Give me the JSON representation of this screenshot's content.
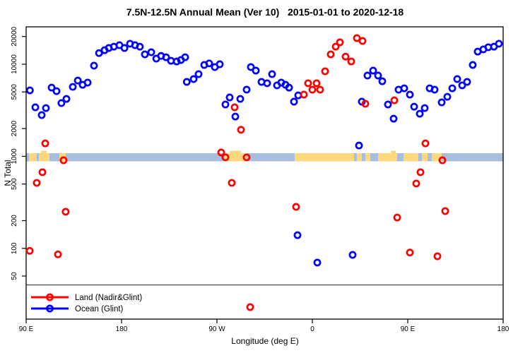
{
  "chart_data": {
    "type": "scatter",
    "title": "7.5N-12.5N Annual Mean (Ver 10)   2015-01-01 to 2020-12-18",
    "xlabel": "Longitude (deg E)",
    "ylabel": "N Total",
    "y_scale": "log10",
    "y_ticks": [
      50,
      100,
      200,
      500,
      1000,
      2000,
      5000,
      10000,
      20000
    ],
    "y_range": [
      17,
      25000
    ],
    "x_axis_unit": "degrees eastward along wrapped longitude axis (0=90E, 90=180, 180=90W, 270=0, 360=90E, 450=180)",
    "x_ticks_deg": [
      0,
      90,
      180,
      270,
      360,
      450
    ],
    "x_tick_labels": [
      "90 E",
      "180",
      "90 W",
      "0",
      "90 E",
      "180"
    ],
    "grid": false,
    "legend_position": "bottom-left",
    "series": [
      {
        "name": "Land (Nadir&Glint)",
        "color": "#ff0000",
        "marker": "open-circle",
        "points": [
          [
            3.3,
            94
          ],
          [
            10,
            514
          ],
          [
            15.3,
            671
          ],
          [
            18,
            1380
          ],
          [
            30,
            86
          ],
          [
            35.3,
            905
          ],
          [
            37.3,
            250
          ],
          [
            184,
            1100
          ],
          [
            188,
            973
          ],
          [
            194,
            514
          ],
          [
            196.7,
            3400
          ],
          [
            202.7,
            1940
          ],
          [
            208,
            973
          ],
          [
            211.3,
            23
          ],
          [
            254.7,
            282
          ],
          [
            262,
            4680
          ],
          [
            266,
            6210
          ],
          [
            270,
            5290
          ],
          [
            274,
            6210
          ],
          [
            277.3,
            5290
          ],
          [
            282,
            8380
          ],
          [
            287.3,
            12800
          ],
          [
            292,
            15500
          ],
          [
            296,
            17300
          ],
          [
            301.3,
            12100
          ],
          [
            306.7,
            10700
          ],
          [
            312,
            19200
          ],
          [
            317.3,
            17900
          ],
          [
            320,
            3720
          ],
          [
            347.3,
            4050
          ],
          [
            350,
            216
          ],
          [
            362,
            90
          ],
          [
            368,
            506
          ],
          [
            372,
            671
          ],
          [
            376.7,
            1380
          ],
          [
            388,
            82
          ],
          [
            392.7,
            905
          ],
          [
            395.3,
            254
          ]
        ]
      },
      {
        "name": "Ocean (Glint)",
        "color": "#0000ff",
        "marker": "open-circle",
        "points": [
          [
            3.5,
            5200
          ],
          [
            8.7,
            3400
          ],
          [
            14.7,
            2800
          ],
          [
            18.7,
            3340
          ],
          [
            24,
            5570
          ],
          [
            28.7,
            5100
          ],
          [
            33.3,
            3780
          ],
          [
            38,
            4200
          ],
          [
            44,
            5670
          ],
          [
            48.7,
            6650
          ],
          [
            53.3,
            5980
          ],
          [
            58,
            6310
          ],
          [
            64,
            9640
          ],
          [
            68.7,
            13200
          ],
          [
            74,
            14200
          ],
          [
            78,
            15000
          ],
          [
            82.7,
            15500
          ],
          [
            88,
            16100
          ],
          [
            92.7,
            15000
          ],
          [
            98,
            16700
          ],
          [
            102.7,
            16100
          ],
          [
            107.3,
            15500
          ],
          [
            112,
            12800
          ],
          [
            118,
            13500
          ],
          [
            122.7,
            11500
          ],
          [
            127.3,
            12300
          ],
          [
            132,
            11900
          ],
          [
            136.7,
            10900
          ],
          [
            142,
            10700
          ],
          [
            146,
            11100
          ],
          [
            150,
            11900
          ],
          [
            151.5,
            6430
          ],
          [
            158,
            6900
          ],
          [
            162.7,
            7800
          ],
          [
            168,
            9820
          ],
          [
            172.7,
            10200
          ],
          [
            178,
            9310
          ],
          [
            182.7,
            10000
          ],
          [
            188,
            3650
          ],
          [
            192,
            4360
          ],
          [
            197.3,
            2700
          ],
          [
            202,
            4200
          ],
          [
            208,
            5290
          ],
          [
            212,
            9310
          ],
          [
            216.7,
            8530
          ],
          [
            222,
            6430
          ],
          [
            227.3,
            6210
          ],
          [
            232,
            7800
          ],
          [
            236.7,
            5890
          ],
          [
            240.7,
            6310
          ],
          [
            244.7,
            5980
          ],
          [
            248,
            5570
          ],
          [
            252.7,
            3920
          ],
          [
            256,
            139
          ],
          [
            256.7,
            4590
          ],
          [
            274.7,
            70
          ],
          [
            308,
            85
          ],
          [
            314,
            1310
          ],
          [
            316.7,
            3920
          ],
          [
            322,
            7530
          ],
          [
            327.3,
            8530
          ],
          [
            332,
            7530
          ],
          [
            336,
            6530
          ],
          [
            341.3,
            3650
          ],
          [
            346.7,
            2560
          ],
          [
            351.3,
            5290
          ],
          [
            356.7,
            5470
          ],
          [
            362,
            4680
          ],
          [
            366,
            3460
          ],
          [
            371.3,
            2900
          ],
          [
            376,
            3340
          ],
          [
            380.7,
            5470
          ],
          [
            385.3,
            5290
          ],
          [
            392,
            3850
          ],
          [
            397.3,
            4430
          ],
          [
            402,
            5470
          ],
          [
            406.7,
            6900
          ],
          [
            411.3,
            5890
          ],
          [
            416,
            6430
          ],
          [
            421.3,
            9820
          ],
          [
            426,
            13700
          ],
          [
            431.3,
            14500
          ],
          [
            436,
            15300
          ],
          [
            441.3,
            15500
          ],
          [
            446,
            16700
          ]
        ]
      }
    ],
    "reference_line": {
      "value": 40,
      "color": "#555555"
    },
    "land_ocean_strip": {
      "center_value": 1000,
      "ocean_color": "#a8bede",
      "land_color": "#ffd87d",
      "land_segments_deg": [
        [
          2.7,
          10
        ],
        [
          12,
          22
        ],
        [
          31.3,
          37.3
        ],
        [
          186.7,
          208
        ],
        [
          253.3,
          309.3
        ],
        [
          312,
          316.7
        ],
        [
          320,
          324.7
        ],
        [
          332,
          350
        ],
        [
          356,
          370
        ],
        [
          373.3,
          378.7
        ],
        [
          382.7,
          392
        ]
      ],
      "land_bumps_deg": [
        [
          14,
          19.3
        ],
        [
          192,
          202.7
        ],
        [
          344,
          348.7
        ]
      ]
    }
  }
}
